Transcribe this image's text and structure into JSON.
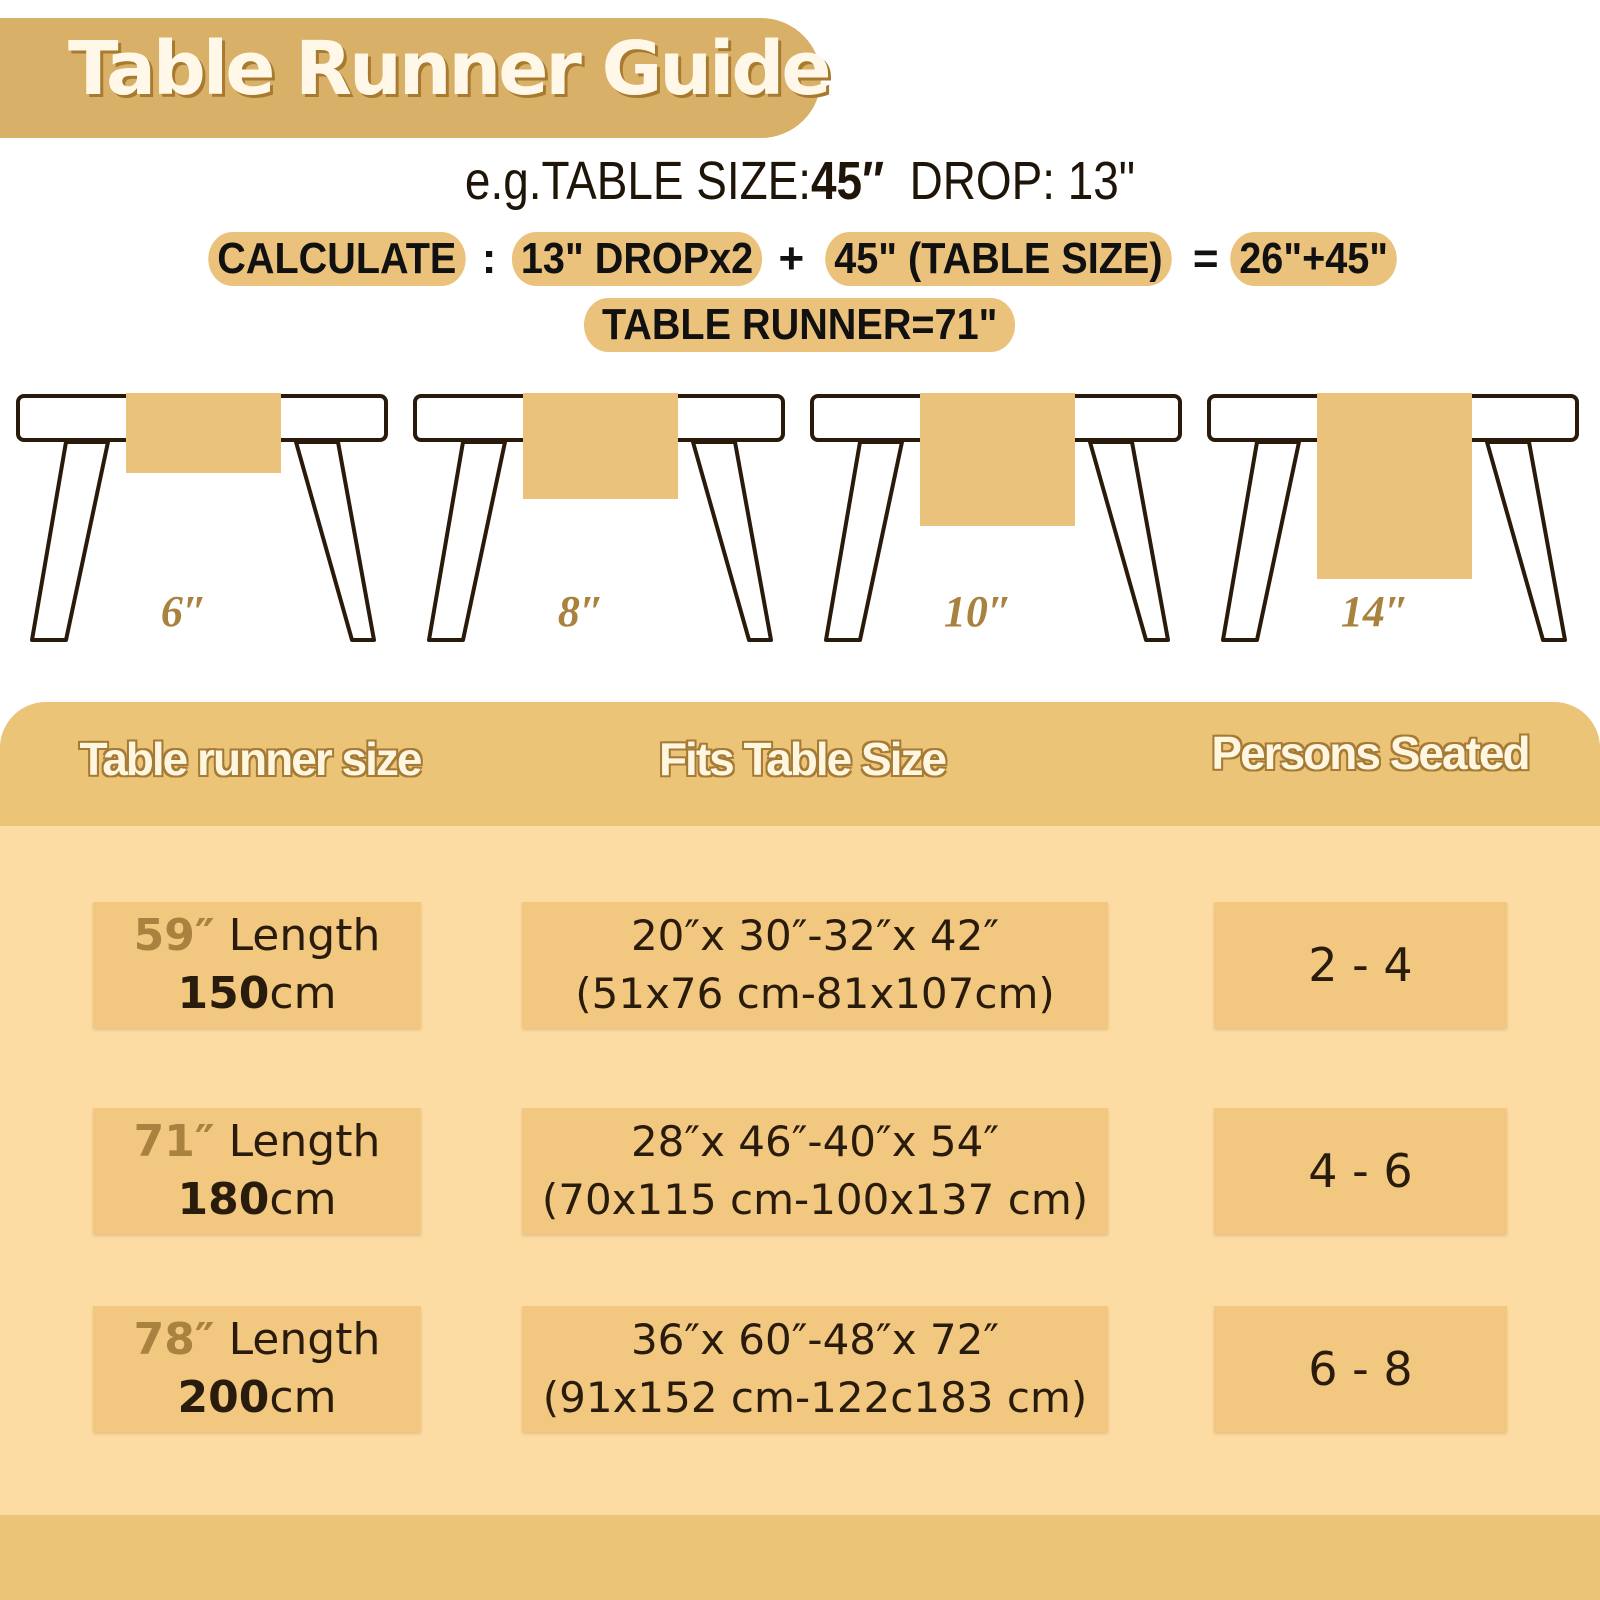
{
  "title": "Table Runner Guide",
  "example": {
    "prefix": "e.g.TABLE SIZE:",
    "table_size": "45″",
    "drop_label": "DROP: 13\""
  },
  "calculate": {
    "label": "CALCULATE",
    "sep": ":",
    "drop_term": "13\" DROPx2",
    "plus": "+",
    "table_term": "45\" (TABLE SIZE)",
    "equals": "=",
    "sum": "26\"+45\""
  },
  "result": "TABLE RUNNER=71\"",
  "drops": [
    {
      "label": "6″",
      "value_in": 6
    },
    {
      "label": "8″",
      "value_in": 8
    },
    {
      "label": "10″",
      "value_in": 10
    },
    {
      "label": "14″",
      "value_in": 14
    }
  ],
  "colors": {
    "title_band": "#d9b068",
    "runner": "#ebc27c",
    "panel": "#fddca4",
    "header": "#ecc478",
    "cell": "#f2c880"
  },
  "table": {
    "headers": [
      "Table runner size",
      "Fits Table Size",
      "Persons Seated"
    ],
    "rows": [
      {
        "inch": "59″",
        "length": "Length",
        "cm": "150",
        "cm_unit": "cm",
        "fits_in": "20″x 30″-32″x 42″",
        "fits_cm": "(51x76 cm-81x107cm)",
        "persons": "2 - 4"
      },
      {
        "inch": "71″",
        "length": "Length",
        "cm": "180",
        "cm_unit": "cm",
        "fits_in": "28″x 46″-40″x 54″",
        "fits_cm": "(70x115 cm-100x137 cm)",
        "persons": "4 - 6"
      },
      {
        "inch": "78″",
        "length": "Length",
        "cm": "200",
        "cm_unit": "cm",
        "fits_in": "36″x 60″-48″x 72″",
        "fits_cm": "(91x152 cm-122c183 cm)",
        "persons": "6 - 8"
      }
    ]
  }
}
